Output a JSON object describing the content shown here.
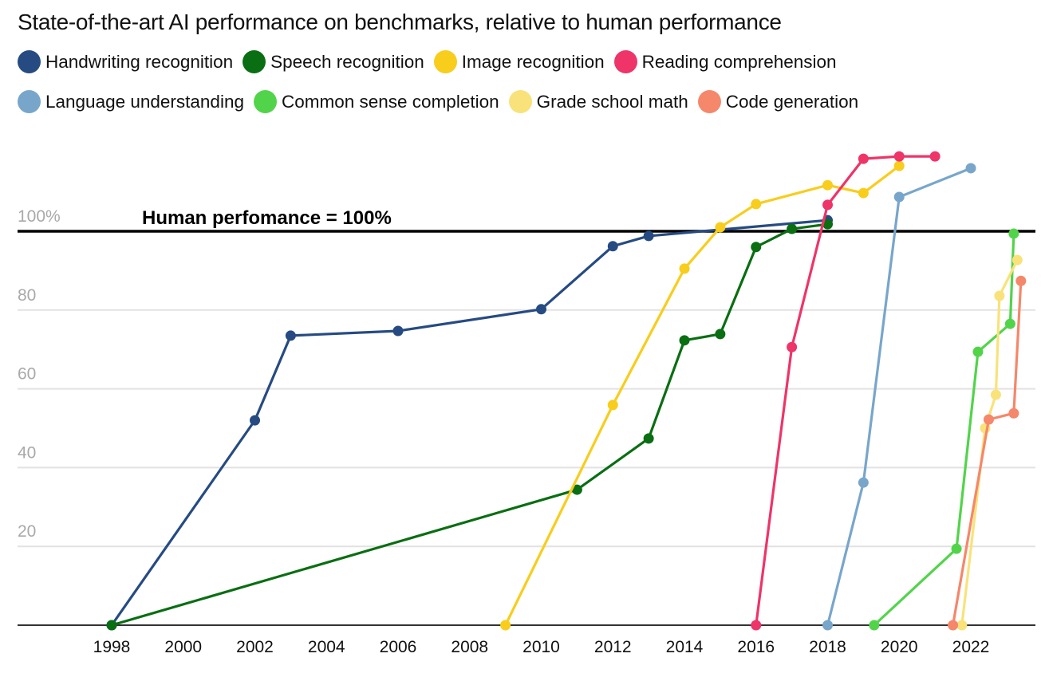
{
  "chart_data": {
    "type": "line",
    "title": "State-of-the-art AI performance on benchmarks, relative to human performance",
    "xlabel": "",
    "ylabel": "",
    "xlim": [
      1995.4,
      2024.6
    ],
    "ylim": [
      0,
      120
    ],
    "x_ticks": [
      1998,
      2000,
      2002,
      2004,
      2006,
      2008,
      2010,
      2012,
      2014,
      2016,
      2018,
      2020,
      2022
    ],
    "y_ticks": [
      {
        "value": 20,
        "label": "20"
      },
      {
        "value": 40,
        "label": "40"
      },
      {
        "value": 60,
        "label": "60"
      },
      {
        "value": 80,
        "label": "80"
      },
      {
        "value": 100,
        "label": "100%"
      }
    ],
    "grid": true,
    "legend_position": "top-left",
    "reference_line": {
      "value": 100,
      "label": "Human perfomance = 100%",
      "color": "#000000"
    },
    "series": [
      {
        "name": "Handwriting recognition",
        "color": "#264b82",
        "points": [
          [
            1998,
            0
          ],
          [
            2002,
            52
          ],
          [
            2003,
            73.5
          ],
          [
            2006,
            74.7
          ],
          [
            2010,
            80.2
          ],
          [
            2012,
            96.2
          ],
          [
            2013,
            98.8
          ],
          [
            2018,
            102.8
          ]
        ]
      },
      {
        "name": "Speech recognition",
        "color": "#0a6e12",
        "points": [
          [
            1998,
            0
          ],
          [
            2011,
            34.4
          ],
          [
            2013,
            47.4
          ],
          [
            2014,
            72.3
          ],
          [
            2015,
            73.9
          ],
          [
            2016,
            96
          ],
          [
            2017,
            100.6
          ],
          [
            2018,
            101.8
          ]
        ]
      },
      {
        "name": "Image recognition",
        "color": "#f8cd1c",
        "points": [
          [
            2009,
            0
          ],
          [
            2012,
            55.9
          ],
          [
            2014,
            90.5
          ],
          [
            2015,
            101
          ],
          [
            2016,
            106.9
          ],
          [
            2018,
            111.7
          ],
          [
            2019,
            109.7
          ],
          [
            2020,
            116.6
          ]
        ]
      },
      {
        "name": "Reading comprehension",
        "color": "#ee3468",
        "points": [
          [
            2016,
            0
          ],
          [
            2017,
            70.6
          ],
          [
            2018,
            106.7
          ],
          [
            2019,
            118.4
          ],
          [
            2020,
            119
          ],
          [
            2021,
            119
          ]
        ]
      },
      {
        "name": "Language understanding",
        "color": "#78a6cb",
        "points": [
          [
            2018,
            0
          ],
          [
            2019,
            36.2
          ],
          [
            2020,
            108.7
          ],
          [
            2022,
            116
          ]
        ]
      },
      {
        "name": "Common sense completion",
        "color": "#52d44a",
        "points": [
          [
            2019.3,
            0
          ],
          [
            2021.6,
            19.4
          ],
          [
            2022.2,
            69.4
          ],
          [
            2023.1,
            76.5
          ],
          [
            2023.2,
            99.4
          ]
        ]
      },
      {
        "name": "Grade school math",
        "color": "#f9e27a",
        "points": [
          [
            2021.75,
            0
          ],
          [
            2022.4,
            50
          ],
          [
            2022.7,
            58.5
          ],
          [
            2022.8,
            83.6
          ],
          [
            2023.3,
            92.7
          ]
        ]
      },
      {
        "name": "Code generation",
        "color": "#f5876a",
        "points": [
          [
            2021.5,
            0
          ],
          [
            2022.5,
            52.2
          ],
          [
            2023.2,
            53.8
          ],
          [
            2023.4,
            87.4
          ]
        ]
      }
    ]
  },
  "legend": {
    "row1": [
      {
        "label": "Handwriting recognition",
        "color": "#264b82"
      },
      {
        "label": "Speech recognition",
        "color": "#0a6e12"
      },
      {
        "label": "Image recognition",
        "color": "#f8cd1c"
      },
      {
        "label": "Reading comprehension",
        "color": "#ee3468"
      }
    ],
    "row2": [
      {
        "label": "Language understanding",
        "color": "#78a6cb"
      },
      {
        "label": "Common sense completion",
        "color": "#52d44a"
      },
      {
        "label": "Grade school math",
        "color": "#f9e27a"
      },
      {
        "label": "Code generation",
        "color": "#f5876a"
      }
    ]
  }
}
